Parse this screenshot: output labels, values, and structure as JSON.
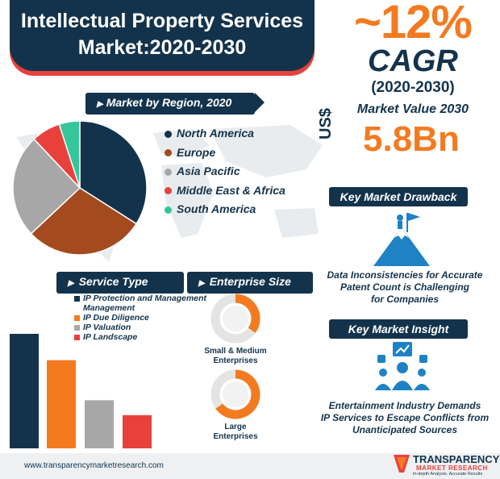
{
  "title": {
    "line1": "Intellectual Property Services",
    "line2": "Market:2020-2030"
  },
  "cagr": {
    "value": "~12%",
    "label": "CAGR",
    "period": "(2020-2030)"
  },
  "market_value": {
    "label": "Market Value 2030",
    "currency": "US$",
    "amount": "5.8Bn"
  },
  "region_section": {
    "title": "Market by Region, 2020"
  },
  "service_section": {
    "title": "Service Type"
  },
  "enterprise_section": {
    "title": "Enterprise Size",
    "items": [
      {
        "label_line1": "Small & Medium",
        "label_line2": "Enterprises"
      },
      {
        "label_line1": "Large",
        "label_line2": "Enterprises"
      }
    ]
  },
  "drawback": {
    "title": "Key Market Drawback",
    "text_line1": "Data Inconsistencies for Accurate",
    "text_line2": "Patent Count is Challenging",
    "text_line3": "for Companies"
  },
  "insight": {
    "title": "Key Market Insight",
    "text_line1": "Entertainment Industry Demands",
    "text_line2": "IP Services to Escape Conflicts from",
    "text_line3": "Unanticipated Sources"
  },
  "footer": {
    "url": "www.transparencymarketresearch.com",
    "brand_line1": "TRANSPARENCY",
    "brand_line2": "MARKET RESEARCH",
    "brand_tagline": "In-depth Analysis. Accurate Results"
  },
  "colors": {
    "navy": "#13334c",
    "orange": "#f47a20",
    "red": "#e8413c",
    "gray": "#a7a7a7",
    "brown": "#a44a1f",
    "teal": "#35c69a"
  },
  "chart_data": [
    {
      "type": "pie",
      "title": "Market by Region, 2020",
      "categories": [
        "North America",
        "Europe",
        "Asia Pacific",
        "Middle East & Africa",
        "South America"
      ],
      "values": [
        34,
        29,
        25,
        7,
        5
      ],
      "colors": [
        "#13334c",
        "#a44a1f",
        "#a7a7a7",
        "#e8413c",
        "#35c69a"
      ],
      "legend": "right"
    },
    {
      "type": "bar",
      "title": "Service Type",
      "categories": [
        "IP Protection and Management",
        "IP Due Diligence",
        "IP Valuation",
        "IP Landscape"
      ],
      "values": [
        100,
        77,
        42,
        29
      ],
      "colors": [
        "#13334c",
        "#f47a20",
        "#a7a7a7",
        "#e8413c"
      ],
      "legend": "top-right"
    },
    {
      "type": "pie",
      "title": "Enterprise Size",
      "categories": [
        "Small & Medium Enterprises",
        "Large Enterprises"
      ],
      "values": [
        35,
        65
      ],
      "colors": [
        "#f47a20",
        "#f47a20"
      ]
    }
  ]
}
